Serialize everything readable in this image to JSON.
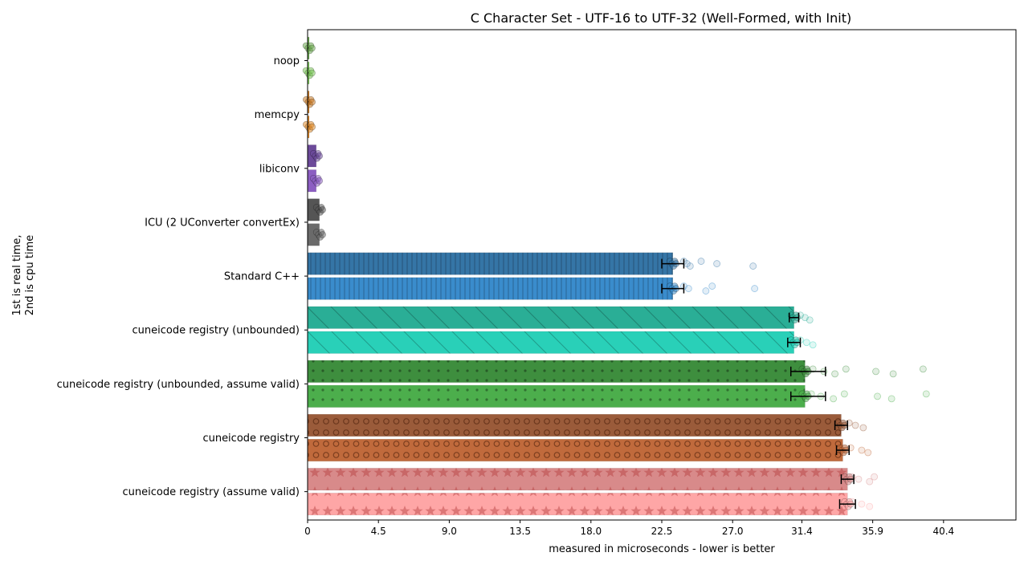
{
  "chart_data": {
    "type": "bar",
    "orientation": "horizontal",
    "title": "C Character Set - UTF-16 to UTF-32 (Well-Formed, with Init)",
    "xlabel": "measured in microseconds - lower is better",
    "ylabel_line1": "1st is real time,",
    "ylabel_line2": "2nd is cpu time",
    "xlim": [
      0,
      45
    ],
    "xticks": [
      0,
      4.5,
      9.0,
      13.5,
      18.0,
      22.5,
      27.0,
      31.4,
      35.9,
      40.4
    ],
    "xtick_labels": [
      "0",
      "4.5",
      "9.0",
      "13.5",
      "18.0",
      "22.5",
      "27.0",
      "31.4",
      "35.9",
      "40.4"
    ],
    "grid": false,
    "categories": [
      "noop",
      "memcpy",
      "libiconv",
      "ICU (2 UConverter convertEx)",
      "Standard C++",
      "cuneicode registry (unbounded)",
      "cuneicode registry (unbounded, assume valid)",
      "cuneicode registry",
      "cuneicode registry (assume valid)"
    ],
    "series": [
      {
        "values": [
          0.08,
          0.09,
          0.55,
          0.75,
          23.2,
          30.9,
          31.6,
          33.9,
          34.3
        ],
        "err_low": [
          0,
          0,
          0,
          0,
          0.7,
          0.3,
          0.9,
          0.4,
          0.4
        ],
        "err_high": [
          0,
          0,
          0,
          0,
          0.7,
          0.3,
          1.3,
          0.4,
          0.4
        ]
      },
      {
        "values": [
          0.08,
          0.09,
          0.55,
          0.75,
          23.2,
          30.9,
          31.6,
          34.0,
          34.3
        ],
        "err_low": [
          0,
          0,
          0,
          0,
          0.7,
          0.4,
          0.9,
          0.4,
          0.5
        ],
        "err_high": [
          0,
          0,
          0,
          0,
          0.7,
          0.4,
          1.3,
          0.4,
          0.5
        ]
      }
    ],
    "colors": {
      "real": [
        "#6aa84f",
        "#c97a26",
        "#6c4a9a",
        "#555555",
        "#3575a6",
        "#2aae96",
        "#3e8e3e",
        "#9a5b3a",
        "#d88a8a"
      ],
      "cpu": [
        "#7cc65a",
        "#e08a2a",
        "#8c5ec2",
        "#6a6a6a",
        "#3a8ccc",
        "#29d0b8",
        "#4cae4c",
        "#c06a3c",
        "#fea6a6"
      ]
    },
    "patterns": [
      "none",
      "none",
      "none",
      "none",
      "vlines",
      "diag",
      "dots",
      "circles",
      "stars"
    ],
    "outliers": [
      [],
      [],
      [],
      [],
      [
        [
          23.9,
          24.1,
          24.3,
          25.0,
          26.0,
          28.3
        ],
        [
          23.9,
          24.2,
          25.3,
          25.7,
          28.4
        ]
      ],
      [
        [
          31.3,
          31.6,
          31.9
        ],
        [
          31.3,
          31.7,
          32.1
        ]
      ],
      [
        [
          32.1,
          32.8,
          33.5,
          34.2,
          36.1,
          37.2,
          39.1
        ],
        [
          32.0,
          32.6,
          33.4,
          34.1,
          36.2,
          37.1,
          39.3
        ]
      ],
      [
        [
          34.4,
          34.8,
          35.3
        ],
        [
          34.5,
          35.2,
          35.6
        ]
      ],
      [
        [
          34.6,
          35.0,
          35.7,
          36.0
        ],
        [
          34.6,
          35.2,
          35.7
        ]
      ]
    ]
  }
}
